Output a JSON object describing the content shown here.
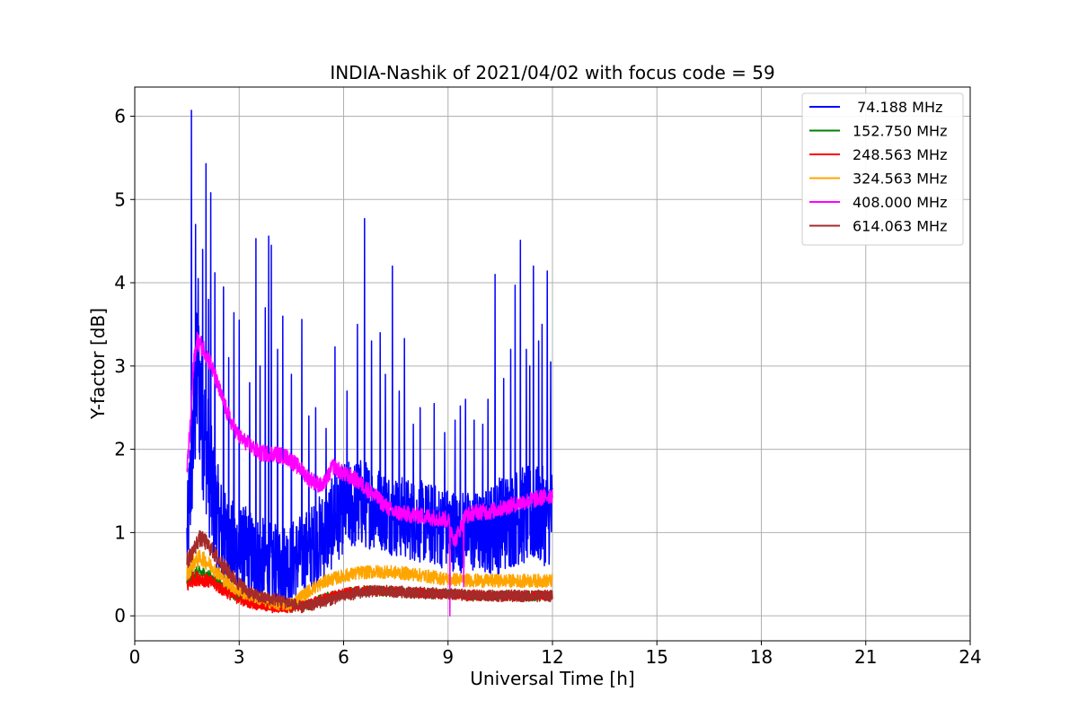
{
  "chart_data": {
    "type": "line",
    "title": "INDIA-Nashik of 2021/04/02 with focus code = 59",
    "xlabel": "Universal Time [h]",
    "ylabel": "Y-factor [dB]",
    "xlim": [
      0,
      24
    ],
    "ylim": [
      -0.3,
      6.35
    ],
    "xticks": [
      0,
      3,
      6,
      9,
      12,
      15,
      18,
      21,
      24
    ],
    "yticks": [
      0,
      1,
      2,
      3,
      4,
      5,
      6
    ],
    "grid": true,
    "legend_position": "top-right",
    "x_range_of_data": [
      1.5,
      12.0
    ],
    "series": [
      {
        "name": " 74.188 MHz",
        "color": "#0000ff",
        "x": [
          1.5,
          1.6,
          1.7,
          1.8,
          1.9,
          2.0,
          2.1,
          2.2,
          2.4,
          2.6,
          2.8,
          3.0,
          3.3,
          3.6,
          4.0,
          4.5,
          5.0,
          5.5,
          6.0,
          6.5,
          7.0,
          7.5,
          8.0,
          8.5,
          9.0,
          9.5,
          10.0,
          10.5,
          11.0,
          11.5,
          12.0
        ],
        "values": [
          0.9,
          1.6,
          2.3,
          2.9,
          2.6,
          2.2,
          1.9,
          1.5,
          1.1,
          0.9,
          0.8,
          0.75,
          0.7,
          0.65,
          0.6,
          0.65,
          0.8,
          1.0,
          1.3,
          1.35,
          1.3,
          1.2,
          1.15,
          1.1,
          1.05,
          1.0,
          1.0,
          1.1,
          1.2,
          1.2,
          1.2
        ],
        "spread": [
          0.5,
          0.8,
          0.9,
          1.0,
          1.0,
          0.9,
          0.8,
          0.8,
          0.7,
          0.6,
          0.6,
          0.6,
          0.6,
          0.55,
          0.5,
          0.5,
          0.5,
          0.55,
          0.55,
          0.55,
          0.5,
          0.5,
          0.5,
          0.5,
          0.5,
          0.5,
          0.5,
          0.6,
          0.6,
          0.6,
          0.6
        ],
        "spikes": [
          [
            1.63,
            6.07
          ],
          [
            1.75,
            4.7
          ],
          [
            1.82,
            4.05
          ],
          [
            1.95,
            4.4
          ],
          [
            2.05,
            5.43
          ],
          [
            2.12,
            3.8
          ],
          [
            2.18,
            5.08
          ],
          [
            2.3,
            4.12
          ],
          [
            2.55,
            3.95
          ],
          [
            2.7,
            3.1
          ],
          [
            2.85,
            3.64
          ],
          [
            3.0,
            3.55
          ],
          [
            3.3,
            2.8
          ],
          [
            3.48,
            4.53
          ],
          [
            3.6,
            3.0
          ],
          [
            3.75,
            3.7
          ],
          [
            3.85,
            4.56
          ],
          [
            3.92,
            4.45
          ],
          [
            4.1,
            3.2
          ],
          [
            4.25,
            3.6
          ],
          [
            4.5,
            2.9
          ],
          [
            4.8,
            3.56
          ],
          [
            5.0,
            2.4
          ],
          [
            5.2,
            2.5
          ],
          [
            5.5,
            2.25
          ],
          [
            5.75,
            3.23
          ],
          [
            6.1,
            2.7
          ],
          [
            6.4,
            3.5
          ],
          [
            6.6,
            4.77
          ],
          [
            6.8,
            3.3
          ],
          [
            7.05,
            3.4
          ],
          [
            7.2,
            2.9
          ],
          [
            7.4,
            4.2
          ],
          [
            7.6,
            2.7
          ],
          [
            7.75,
            3.33
          ],
          [
            8.0,
            2.3
          ],
          [
            8.2,
            2.5
          ],
          [
            8.6,
            2.55
          ],
          [
            8.9,
            2.2
          ],
          [
            9.2,
            2.35
          ],
          [
            9.35,
            2.52
          ],
          [
            9.5,
            2.6
          ],
          [
            9.75,
            2.35
          ],
          [
            10.0,
            2.3
          ],
          [
            10.15,
            2.6
          ],
          [
            10.35,
            4.1
          ],
          [
            10.6,
            2.85
          ],
          [
            10.8,
            3.2
          ],
          [
            10.93,
            3.97
          ],
          [
            11.08,
            4.51
          ],
          [
            11.25,
            3.2
          ],
          [
            11.35,
            3.0
          ],
          [
            11.45,
            4.2
          ],
          [
            11.6,
            3.3
          ],
          [
            11.7,
            3.5
          ],
          [
            11.85,
            4.14
          ],
          [
            11.95,
            3.05
          ]
        ]
      },
      {
        "name": "152.750 MHz",
        "color": "#008000",
        "x": [
          1.5,
          1.7,
          1.9,
          2.2,
          2.6,
          3.0,
          3.5,
          4.0,
          4.5,
          5.0,
          5.5,
          6.0,
          6.5,
          7.0,
          8.0,
          9.0,
          10.0,
          11.0,
          12.0
        ],
        "values": [
          0.42,
          0.5,
          0.52,
          0.46,
          0.33,
          0.22,
          0.15,
          0.12,
          0.1,
          0.14,
          0.22,
          0.27,
          0.3,
          0.3,
          0.28,
          0.26,
          0.24,
          0.24,
          0.24
        ],
        "spread": [
          0.08,
          0.08,
          0.08,
          0.08,
          0.07,
          0.07,
          0.06,
          0.06,
          0.06,
          0.06,
          0.06,
          0.06,
          0.06,
          0.06,
          0.06,
          0.06,
          0.06,
          0.06,
          0.06
        ],
        "spikes": []
      },
      {
        "name": "248.563 MHz",
        "color": "#ff0000",
        "x": [
          1.5,
          1.7,
          1.9,
          2.2,
          2.6,
          3.0,
          3.5,
          4.0,
          4.5,
          5.0,
          5.5,
          6.0,
          6.5,
          7.0,
          8.0,
          9.0,
          10.0,
          11.0,
          12.0
        ],
        "values": [
          0.36,
          0.45,
          0.45,
          0.4,
          0.3,
          0.2,
          0.14,
          0.1,
          0.1,
          0.14,
          0.22,
          0.27,
          0.3,
          0.3,
          0.28,
          0.26,
          0.24,
          0.24,
          0.24
        ],
        "spread": [
          0.09,
          0.09,
          0.09,
          0.08,
          0.08,
          0.07,
          0.07,
          0.07,
          0.06,
          0.06,
          0.06,
          0.06,
          0.06,
          0.06,
          0.06,
          0.06,
          0.06,
          0.06,
          0.06
        ],
        "spikes": []
      },
      {
        "name": "324.563 MHz",
        "color": "#ffa500",
        "x": [
          1.5,
          1.7,
          1.9,
          2.2,
          2.6,
          3.0,
          3.5,
          4.0,
          4.5,
          5.0,
          5.5,
          6.0,
          6.5,
          7.0,
          7.5,
          8.0,
          8.5,
          9.0,
          10.0,
          11.0,
          12.0
        ],
        "values": [
          0.5,
          0.65,
          0.7,
          0.6,
          0.42,
          0.3,
          0.22,
          0.15,
          0.14,
          0.3,
          0.42,
          0.48,
          0.52,
          0.53,
          0.52,
          0.5,
          0.47,
          0.44,
          0.42,
          0.42,
          0.42
        ],
        "spread": [
          0.1,
          0.1,
          0.1,
          0.09,
          0.09,
          0.08,
          0.08,
          0.08,
          0.08,
          0.08,
          0.08,
          0.08,
          0.08,
          0.08,
          0.08,
          0.08,
          0.08,
          0.08,
          0.08,
          0.08,
          0.08
        ],
        "spikes": []
      },
      {
        "name": "408.000 MHz",
        "color": "#ff00ff",
        "x": [
          1.5,
          1.6,
          1.7,
          1.8,
          1.9,
          2.0,
          2.2,
          2.4,
          2.6,
          2.8,
          3.0,
          3.3,
          3.6,
          4.0,
          4.4,
          4.8,
          5.0,
          5.4,
          5.7,
          6.0,
          6.3,
          6.6,
          7.0,
          7.4,
          7.8,
          8.2,
          8.6,
          9.0,
          9.2,
          9.5,
          9.8,
          10.2,
          10.6,
          11.0,
          11.5,
          12.0
        ],
        "values": [
          1.75,
          2.3,
          3.1,
          3.3,
          3.25,
          3.2,
          3.0,
          2.75,
          2.5,
          2.3,
          2.15,
          2.05,
          1.95,
          1.95,
          1.9,
          1.75,
          1.65,
          1.55,
          1.8,
          1.7,
          1.65,
          1.55,
          1.4,
          1.25,
          1.22,
          1.2,
          1.18,
          1.15,
          0.9,
          1.2,
          1.25,
          1.25,
          1.3,
          1.35,
          1.4,
          1.45
        ],
        "spread": [
          0.12,
          0.12,
          0.12,
          0.12,
          0.12,
          0.11,
          0.11,
          0.11,
          0.11,
          0.1,
          0.1,
          0.1,
          0.1,
          0.1,
          0.1,
          0.1,
          0.1,
          0.1,
          0.1,
          0.1,
          0.1,
          0.1,
          0.1,
          0.1,
          0.1,
          0.1,
          0.1,
          0.1,
          0.1,
          0.1,
          0.1,
          0.1,
          0.1,
          0.1,
          0.1,
          0.1
        ],
        "spikes": [
          [
            9.05,
            0.0
          ],
          [
            9.45,
            0.35
          ]
        ]
      },
      {
        "name": "614.063 MHz",
        "color": "#a52a2a",
        "x": [
          1.5,
          1.7,
          1.85,
          2.0,
          2.2,
          2.5,
          2.8,
          3.0,
          3.3,
          3.6,
          4.0,
          4.5,
          4.8,
          5.0,
          5.5,
          6.0,
          6.5,
          7.0,
          8.0,
          9.0,
          10.0,
          11.0,
          12.0
        ],
        "values": [
          0.65,
          0.8,
          0.93,
          0.9,
          0.8,
          0.62,
          0.48,
          0.38,
          0.28,
          0.22,
          0.2,
          0.15,
          0.1,
          0.12,
          0.18,
          0.24,
          0.28,
          0.3,
          0.28,
          0.26,
          0.24,
          0.24,
          0.24
        ],
        "spread": [
          0.1,
          0.1,
          0.1,
          0.1,
          0.1,
          0.1,
          0.09,
          0.09,
          0.08,
          0.08,
          0.08,
          0.08,
          0.07,
          0.07,
          0.07,
          0.07,
          0.07,
          0.07,
          0.07,
          0.07,
          0.07,
          0.07,
          0.07
        ],
        "spikes": []
      }
    ]
  }
}
